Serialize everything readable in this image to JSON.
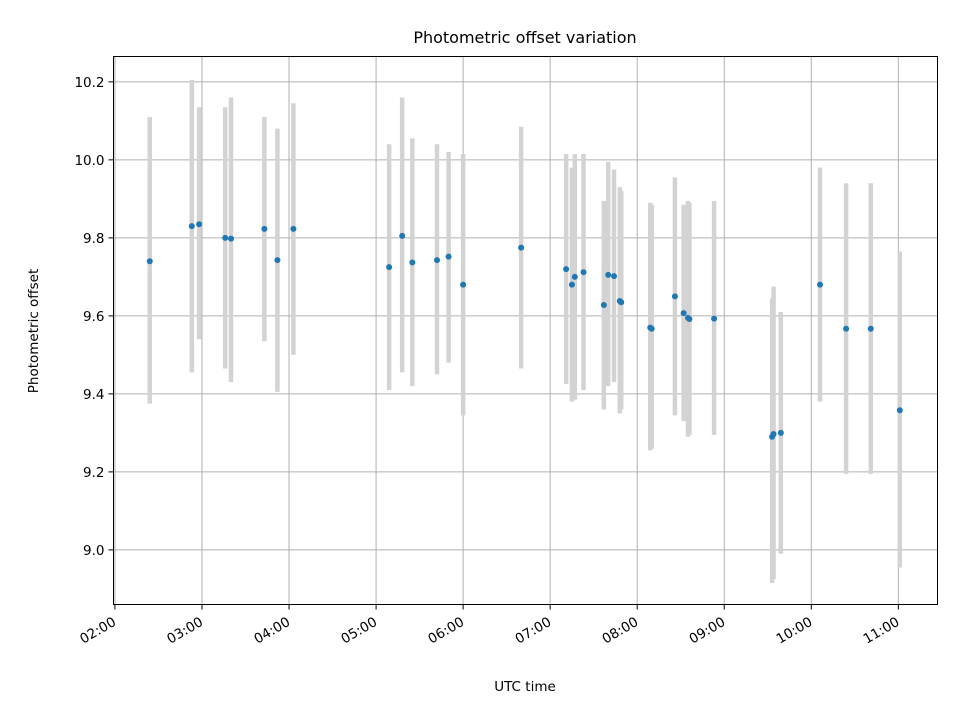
{
  "chart_data": {
    "type": "scatter",
    "title": "Photometric offset variation",
    "xlabel": "UTC time",
    "ylabel": "Photometric offset",
    "x_unit": "hours UTC",
    "xlim": [
      "01:59",
      "11:27"
    ],
    "ylim": [
      8.86,
      10.265
    ],
    "xticks": [
      "02:00",
      "03:00",
      "04:00",
      "05:00",
      "06:00",
      "07:00",
      "08:00",
      "09:00",
      "10:00",
      "11:00"
    ],
    "yticks": [
      9.0,
      9.2,
      9.4,
      9.6,
      9.8,
      10.0,
      10.2
    ],
    "ytick_labels": [
      "9.0",
      "9.2",
      "9.4",
      "9.6",
      "9.8",
      "10.0",
      "10.2"
    ],
    "grid": true,
    "colors": {
      "point": "#1f77b4",
      "errorbar": "#d3d3d3"
    },
    "points": [
      {
        "x": "02:24",
        "y": 9.74,
        "ylo": 9.375,
        "yhi": 10.11
      },
      {
        "x": "02:53",
        "y": 9.83,
        "ylo": 9.455,
        "yhi": 10.205
      },
      {
        "x": "02:58",
        "y": 9.835,
        "ylo": 9.54,
        "yhi": 10.135
      },
      {
        "x": "03:16",
        "y": 9.8,
        "ylo": 9.465,
        "yhi": 10.135
      },
      {
        "x": "03:20",
        "y": 9.798,
        "ylo": 9.43,
        "yhi": 10.16
      },
      {
        "x": "03:43",
        "y": 9.823,
        "ylo": 9.535,
        "yhi": 10.11
      },
      {
        "x": "03:52",
        "y": 9.743,
        "ylo": 9.405,
        "yhi": 10.08
      },
      {
        "x": "04:03",
        "y": 9.823,
        "ylo": 9.5,
        "yhi": 10.145
      },
      {
        "x": "05:09",
        "y": 9.725,
        "ylo": 9.41,
        "yhi": 10.04
      },
      {
        "x": "05:18",
        "y": 9.805,
        "ylo": 9.455,
        "yhi": 10.16
      },
      {
        "x": "05:25",
        "y": 9.737,
        "ylo": 9.42,
        "yhi": 10.055
      },
      {
        "x": "05:42",
        "y": 9.743,
        "ylo": 9.45,
        "yhi": 10.04
      },
      {
        "x": "05:50",
        "y": 9.752,
        "ylo": 9.48,
        "yhi": 10.02
      },
      {
        "x": "06:00",
        "y": 9.68,
        "ylo": 9.345,
        "yhi": 10.015
      },
      {
        "x": "06:40",
        "y": 9.775,
        "ylo": 9.465,
        "yhi": 10.085
      },
      {
        "x": "07:11",
        "y": 9.72,
        "ylo": 9.425,
        "yhi": 10.015
      },
      {
        "x": "07:15",
        "y": 9.68,
        "ylo": 9.38,
        "yhi": 9.98
      },
      {
        "x": "07:17",
        "y": 9.7,
        "ylo": 9.385,
        "yhi": 10.015
      },
      {
        "x": "07:23",
        "y": 9.712,
        "ylo": 9.41,
        "yhi": 10.015
      },
      {
        "x": "07:37",
        "y": 9.628,
        "ylo": 9.36,
        "yhi": 9.895
      },
      {
        "x": "07:40",
        "y": 9.705,
        "ylo": 9.42,
        "yhi": 9.995
      },
      {
        "x": "07:44",
        "y": 9.702,
        "ylo": 9.43,
        "yhi": 9.975
      },
      {
        "x": "07:48",
        "y": 9.638,
        "ylo": 9.35,
        "yhi": 9.93
      },
      {
        "x": "07:49",
        "y": 9.635,
        "ylo": 9.36,
        "yhi": 9.92
      },
      {
        "x": "08:09",
        "y": 9.57,
        "ylo": 9.255,
        "yhi": 9.89
      },
      {
        "x": "08:10",
        "y": 9.567,
        "ylo": 9.26,
        "yhi": 9.885
      },
      {
        "x": "08:26",
        "y": 9.65,
        "ylo": 9.345,
        "yhi": 9.955
      },
      {
        "x": "08:32",
        "y": 9.607,
        "ylo": 9.33,
        "yhi": 9.885
      },
      {
        "x": "08:35",
        "y": 9.595,
        "ylo": 9.29,
        "yhi": 9.895
      },
      {
        "x": "08:36",
        "y": 9.592,
        "ylo": 9.295,
        "yhi": 9.89
      },
      {
        "x": "08:53",
        "y": 9.593,
        "ylo": 9.295,
        "yhi": 9.895
      },
      {
        "x": "09:33",
        "y": 9.29,
        "ylo": 8.915,
        "yhi": 9.645
      },
      {
        "x": "09:34",
        "y": 9.297,
        "ylo": 8.925,
        "yhi": 9.675
      },
      {
        "x": "09:39",
        "y": 9.3,
        "ylo": 8.99,
        "yhi": 9.61
      },
      {
        "x": "10:06",
        "y": 9.68,
        "ylo": 9.38,
        "yhi": 9.98
      },
      {
        "x": "10:24",
        "y": 9.567,
        "ylo": 9.195,
        "yhi": 9.94
      },
      {
        "x": "10:41",
        "y": 9.567,
        "ylo": 9.195,
        "yhi": 9.94
      },
      {
        "x": "11:01",
        "y": 9.358,
        "ylo": 8.955,
        "yhi": 9.765
      }
    ]
  }
}
